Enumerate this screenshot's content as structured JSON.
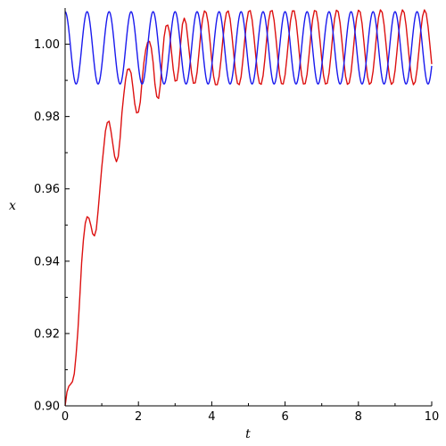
{
  "chart_data": {
    "type": "line",
    "title": "",
    "xlabel": "t",
    "ylabel": "x",
    "xlim": [
      0,
      10
    ],
    "ylim": [
      0.9,
      1.01
    ],
    "grid": false,
    "legend": "none",
    "x_ticks": [
      0,
      2,
      4,
      6,
      8,
      10
    ],
    "x_tick_labels": [
      "0",
      "2",
      "4",
      "6",
      "8",
      "10"
    ],
    "y_ticks": [
      0.9,
      0.92,
      0.94,
      0.96,
      0.98,
      1.0
    ],
    "y_tick_labels": [
      "0.90",
      "0.92",
      "0.94",
      "0.96",
      "0.98",
      "1.00"
    ],
    "series": [
      {
        "color": "#dd1111",
        "x": [
          0,
          0.05,
          0.1,
          0.15,
          0.2,
          0.25,
          0.3,
          0.35,
          0.4,
          0.45,
          0.5,
          0.55,
          0.6,
          0.65,
          0.7,
          0.75,
          0.8,
          0.85,
          0.9,
          0.95,
          1.0,
          1.05,
          1.1,
          1.15,
          1.2,
          1.25,
          1.3,
          1.35,
          1.4,
          1.45,
          1.5,
          1.55,
          1.6,
          1.65,
          1.7,
          1.75,
          1.8,
          1.85,
          1.9,
          1.95,
          2.0,
          2.05,
          2.1,
          2.15,
          2.2,
          2.25,
          2.3,
          2.35,
          2.4,
          2.45,
          2.5,
          2.55,
          2.6,
          2.65,
          2.7,
          2.75,
          2.8,
          2.85,
          2.9,
          2.95,
          3.0,
          3.05,
          3.1,
          3.15,
          3.2,
          3.25,
          3.3,
          3.35,
          3.4,
          3.45,
          3.5,
          3.55,
          3.6,
          3.65,
          3.7,
          3.75,
          3.8,
          3.85,
          3.9,
          3.95,
          4.0,
          4.05,
          4.1,
          4.15,
          4.2,
          4.25,
          4.3,
          4.35,
          4.4,
          4.45,
          4.5,
          4.55,
          4.6,
          4.65,
          4.7,
          4.75,
          4.8,
          4.85,
          4.9,
          4.95,
          5.0,
          5.05,
          5.1,
          5.15,
          5.2,
          5.25,
          5.3,
          5.35,
          5.4,
          5.45,
          5.5,
          5.55,
          5.6,
          5.65,
          5.7,
          5.75,
          5.8,
          5.85,
          5.9,
          5.95,
          6.0,
          6.05,
          6.1,
          6.15,
          6.2,
          6.25,
          6.3,
          6.35,
          6.4,
          6.45,
          6.5,
          6.55,
          6.6,
          6.65,
          6.7,
          6.75,
          6.8,
          6.85,
          6.9,
          6.95,
          7.0,
          7.05,
          7.1,
          7.15,
          7.2,
          7.25,
          7.3,
          7.35,
          7.4,
          7.45,
          7.5,
          7.55,
          7.6,
          7.65,
          7.7,
          7.75,
          7.8,
          7.85,
          7.9,
          7.95,
          8.0,
          8.05,
          8.1,
          8.15,
          8.2,
          8.25,
          8.3,
          8.35,
          8.4,
          8.45,
          8.5,
          8.55,
          8.6,
          8.65,
          8.7,
          8.75,
          8.8,
          8.85,
          8.9,
          8.95,
          9.0,
          9.05,
          9.1,
          9.15,
          9.2,
          9.25,
          9.3,
          9.35,
          9.4,
          9.45,
          9.5,
          9.55,
          9.6,
          9.65,
          9.7,
          9.75,
          9.8,
          9.85,
          9.9,
          9.95,
          10.0
        ],
        "y": [
          0.9,
          0.9038,
          0.9054,
          0.906,
          0.9067,
          0.9089,
          0.9142,
          0.921,
          0.93,
          0.9395,
          0.946,
          0.9505,
          0.9523,
          0.9519,
          0.95,
          0.9476,
          0.947,
          0.9488,
          0.954,
          0.96,
          0.966,
          0.971,
          0.976,
          0.9783,
          0.9787,
          0.976,
          0.9725,
          0.969,
          0.9675,
          0.969,
          0.974,
          0.981,
          0.986,
          0.9903,
          0.993,
          0.9932,
          0.992,
          0.988,
          0.9835,
          0.981,
          0.9812,
          0.984,
          0.99,
          0.995,
          0.9985,
          1.0005,
          1.0008,
          0.999,
          0.995,
          0.989,
          0.9855,
          0.985,
          0.989,
          0.996,
          1.002,
          1.005,
          1.0053,
          1.0032,
          0.998,
          0.993,
          0.9898,
          0.99,
          0.9935,
          1.0,
          1.0055,
          1.0072,
          1.0057,
          1.0013,
          0.9965,
          0.992,
          0.9892,
          0.9893,
          0.9922,
          0.9975,
          1.003,
          1.007,
          1.0092,
          1.0087,
          1.006,
          1.001,
          0.9955,
          0.9912,
          0.9888,
          0.9888,
          0.991,
          0.9955,
          1.001,
          1.0057,
          1.0087,
          1.0092,
          1.007,
          1.0025,
          0.9972,
          0.9922,
          0.9892,
          0.9888,
          0.991,
          0.9957,
          1.0012,
          1.006,
          1.009,
          1.0093,
          1.0068,
          1.0022,
          0.9968,
          0.992,
          0.9892,
          0.9889,
          0.9913,
          0.996,
          1.0016,
          1.0064,
          1.0091,
          1.0093,
          1.0066,
          1.0018,
          0.9964,
          0.9917,
          0.9891,
          0.989,
          0.9915,
          0.9963,
          1.0019,
          1.0066,
          1.0092,
          1.0092,
          1.0064,
          1.0015,
          0.9961,
          0.9915,
          0.989,
          0.9891,
          0.9917,
          0.9966,
          1.0022,
          1.0068,
          1.0093,
          1.0091,
          1.0061,
          1.0012,
          0.9958,
          0.9913,
          0.989,
          0.9892,
          0.992,
          0.9969,
          1.0025,
          1.007,
          1.0094,
          1.009,
          1.0059,
          1.0009,
          0.9955,
          0.9911,
          0.9889,
          0.9893,
          0.9922,
          0.9972,
          1.0028,
          1.0072,
          1.0094,
          1.0089,
          1.0057,
          1.0006,
          0.9952,
          0.991,
          0.9889,
          0.9894,
          0.9925,
          0.9975,
          1.0031,
          1.0074,
          1.0095,
          1.0088,
          1.0054,
          1.0003,
          0.995,
          0.9908,
          0.9889,
          0.9895,
          0.9927,
          0.9978,
          1.0034,
          1.0075,
          1.0095,
          1.0087,
          1.0052,
          1.0,
          0.9947,
          0.9907,
          0.9888,
          0.9896,
          0.993,
          0.9981,
          1.0036,
          1.0077,
          1.0095,
          1.0085,
          1.0049,
          0.9998,
          0.9945
        ]
      },
      {
        "color": "#1a1aee",
        "amplitude": 0.01,
        "center": 0.999,
        "period": 0.6,
        "phase_x": 0,
        "x_range": [
          0,
          10
        ]
      }
    ]
  }
}
